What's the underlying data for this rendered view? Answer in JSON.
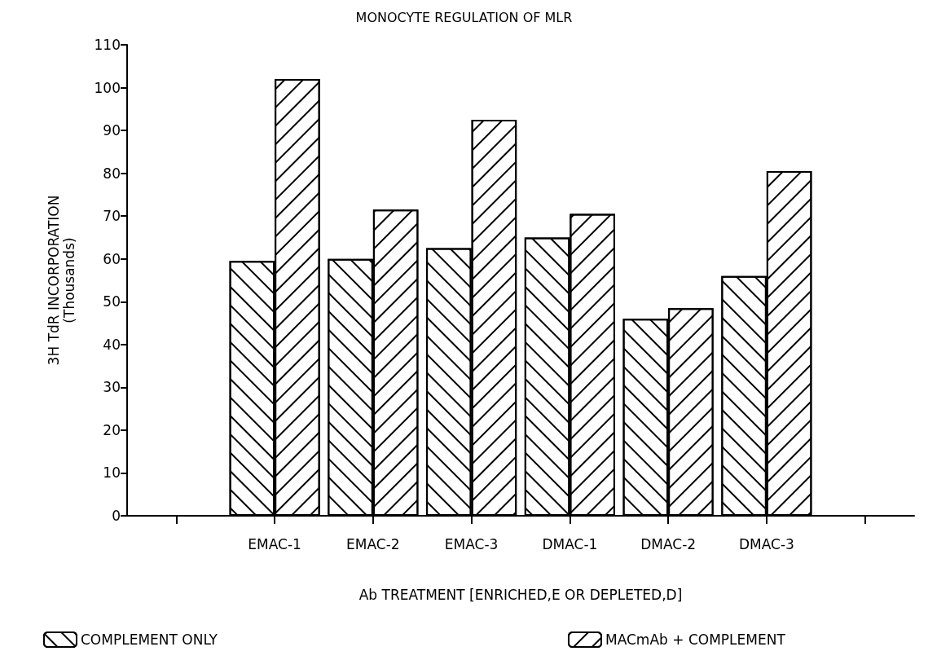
{
  "chart_data": {
    "type": "bar",
    "title": "MONOCYTE REGULATION OF MLR",
    "xlabel": "Ab TREATMENT [ENRICHED,E OR DEPLETED,D]",
    "ylabel": "3H TdR INCORPORATION\n(Thousands)",
    "categories": [
      null,
      "EMAC-1",
      "EMAC-2",
      "EMAC-3",
      "DMAC-1",
      "DMAC-2",
      "DMAC-3",
      null
    ],
    "series": [
      {
        "name": "COMPLEMENT ONLY",
        "color": "#000000",
        "values": [
          null,
          59.5,
          60,
          62.5,
          65,
          46,
          56,
          null
        ]
      },
      {
        "name": "MACmAb + COMPLEMENT",
        "color": "#000000",
        "values": [
          null,
          102,
          71.5,
          92.5,
          70.5,
          48.5,
          80.5,
          null
        ]
      }
    ],
    "ylim": [
      0,
      110
    ],
    "yticks": [
      0,
      10,
      20,
      30,
      40,
      50,
      60,
      70,
      80,
      90,
      100,
      110
    ],
    "grid": false,
    "legend": "bottom"
  }
}
